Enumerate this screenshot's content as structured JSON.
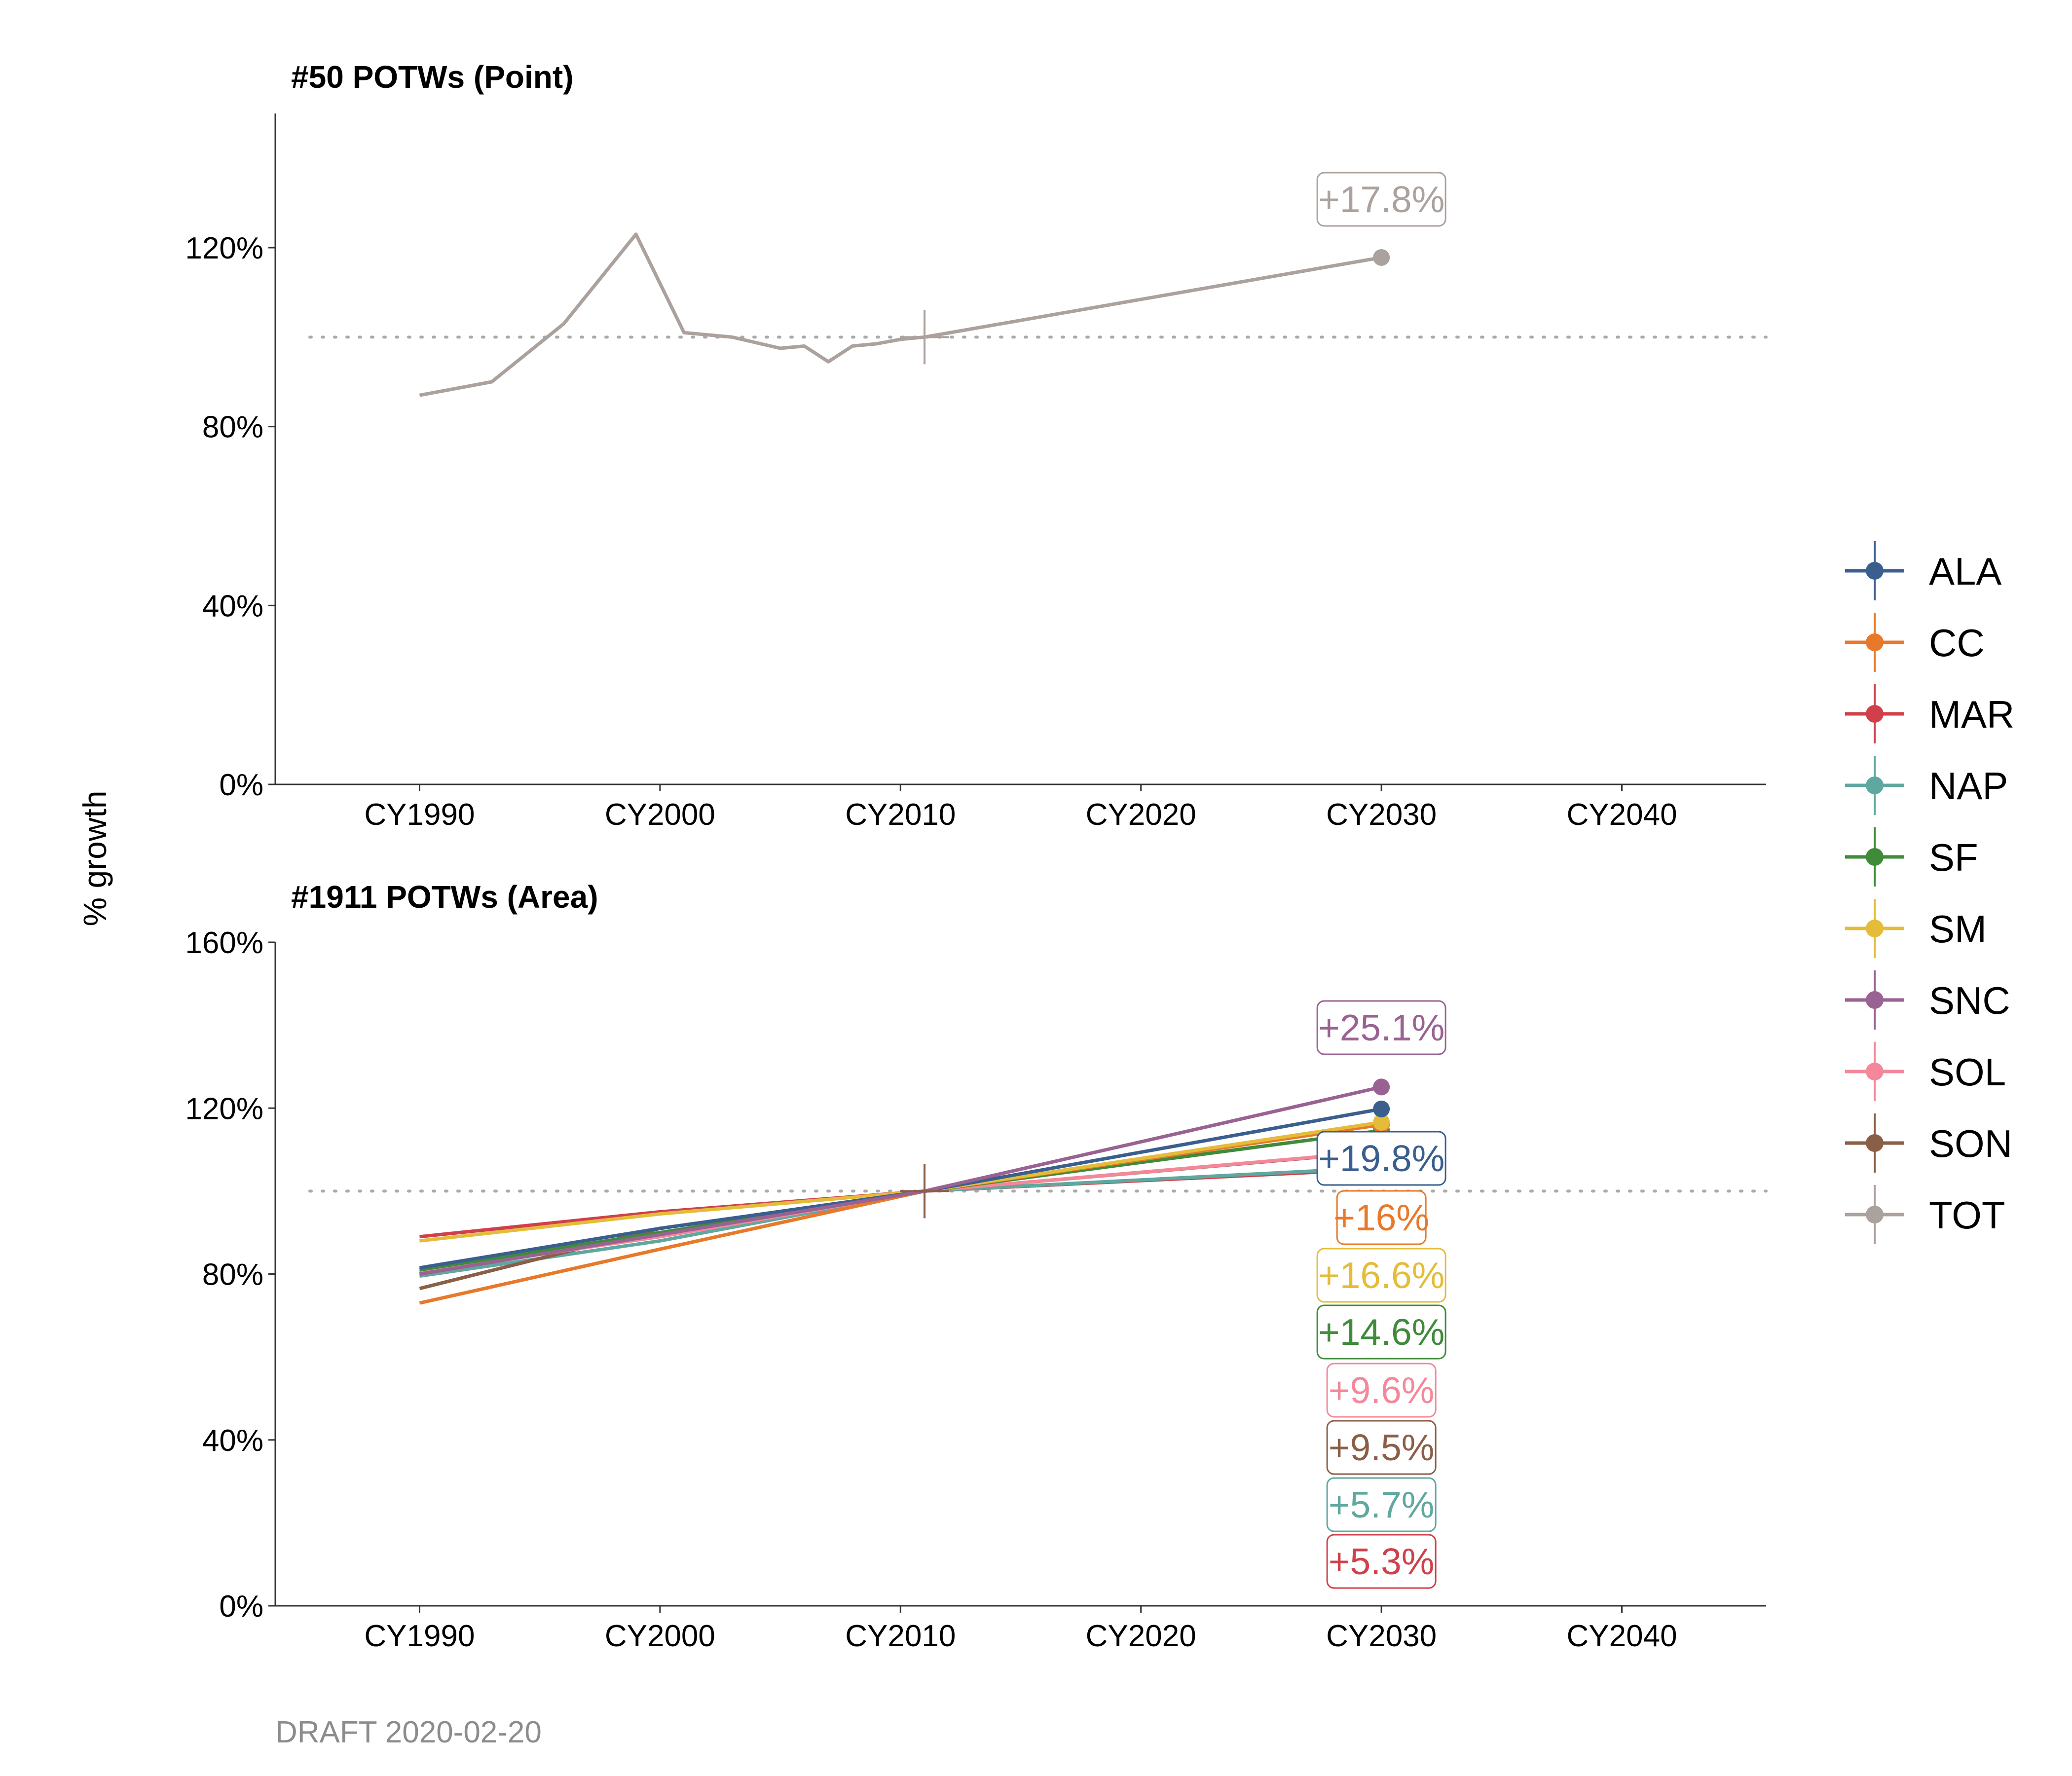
{
  "caption": "DRAFT 2020-02-20",
  "ylabel": "% growth",
  "legend": {
    "position": "right",
    "entries": [
      {
        "key": "ALA",
        "color": "#3A5F8F"
      },
      {
        "key": "CC",
        "color": "#E8792A"
      },
      {
        "key": "MAR",
        "color": "#D0404A"
      },
      {
        "key": "NAP",
        "color": "#5FA8A0"
      },
      {
        "key": "SF",
        "color": "#3F8B3A"
      },
      {
        "key": "SM",
        "color": "#E5BC3A"
      },
      {
        "key": "SNC",
        "color": "#9A6293"
      },
      {
        "key": "SOL",
        "color": "#F4889A"
      },
      {
        "key": "SON",
        "color": "#8B5E47"
      },
      {
        "key": "TOT",
        "color": "#ABA19D"
      }
    ]
  },
  "chart_data": [
    {
      "type": "line",
      "title": "#50 POTWs (Point)",
      "xlabel": "",
      "ylabel": "% growth",
      "xlim": [
        1984,
        2046
      ],
      "ylim": [
        0,
        150
      ],
      "x_ticks": [
        1990,
        2000,
        2010,
        2020,
        2030,
        2040
      ],
      "x_tick_labels": [
        "CY1990",
        "CY2000",
        "CY2010",
        "CY2020",
        "CY2030",
        "CY2040"
      ],
      "y_ticks": [
        0,
        40,
        80,
        120
      ],
      "y_tick_labels": [
        "0%",
        "40%",
        "80%",
        "120%"
      ],
      "reference_line": 100,
      "base_year": 2011,
      "series": [
        {
          "key": "TOT",
          "x": [
            1990,
            1993,
            1996,
            1999,
            2001,
            2003,
            2005,
            2006,
            2007,
            2008,
            2009,
            2010,
            2011,
            2030
          ],
          "y": [
            87,
            90,
            103,
            123,
            101,
            100,
            97.5,
            98,
            94.5,
            98,
            98.5,
            99.5,
            100,
            117.8
          ],
          "end_label": "+17.8%"
        }
      ]
    },
    {
      "type": "line",
      "title": "#1911 POTWs (Area)",
      "xlabel": "",
      "ylabel": "% growth",
      "xlim": [
        1984,
        2046
      ],
      "ylim": [
        0,
        160
      ],
      "x_ticks": [
        1990,
        2000,
        2010,
        2020,
        2030,
        2040
      ],
      "x_tick_labels": [
        "CY1990",
        "CY2000",
        "CY2010",
        "CY2020",
        "CY2030",
        "CY2040"
      ],
      "y_ticks": [
        0,
        40,
        80,
        120,
        160
      ],
      "y_tick_labels": [
        "0%",
        "40%",
        "80%",
        "120%",
        "160%"
      ],
      "reference_line": 100,
      "base_year": 2011,
      "series": [
        {
          "key": "MAR",
          "x": [
            1990,
            2000,
            2011,
            2030
          ],
          "y": [
            89,
            95,
            100,
            105.3
          ],
          "end_label": "+5.3%"
        },
        {
          "key": "NAP",
          "x": [
            1990,
            2000,
            2011,
            2030
          ],
          "y": [
            79.5,
            88,
            100,
            105.7
          ],
          "end_label": "+5.7%"
        },
        {
          "key": "SON",
          "x": [
            1990,
            2000,
            2011,
            2030
          ],
          "y": [
            76.5,
            91,
            100,
            109.5
          ],
          "end_label": "+9.5%"
        },
        {
          "key": "SOL",
          "x": [
            1990,
            2000,
            2011,
            2030
          ],
          "y": [
            80.5,
            89,
            100,
            109.6
          ],
          "end_label": "+9.6%"
        },
        {
          "key": "SF",
          "x": [
            1990,
            2000,
            2011,
            2030
          ],
          "y": [
            81,
            90,
            100,
            114.6
          ],
          "end_label": "+14.6%"
        },
        {
          "key": "CC",
          "x": [
            1990,
            2000,
            2011,
            2030
          ],
          "y": [
            73,
            86,
            100,
            116
          ],
          "end_label": "+16%"
        },
        {
          "key": "SM",
          "x": [
            1990,
            2000,
            2011,
            2030
          ],
          "y": [
            88,
            94.5,
            100,
            116.6
          ],
          "end_label": "+16.6%"
        },
        {
          "key": "ALA",
          "x": [
            1990,
            2000,
            2011,
            2030
          ],
          "y": [
            81.5,
            91,
            100,
            119.8
          ],
          "end_label": "+19.8%"
        },
        {
          "key": "SNC",
          "x": [
            1990,
            2000,
            2011,
            2030
          ],
          "y": [
            80,
            89.5,
            100,
            125.1
          ],
          "end_label": "+25.1%"
        }
      ]
    }
  ]
}
